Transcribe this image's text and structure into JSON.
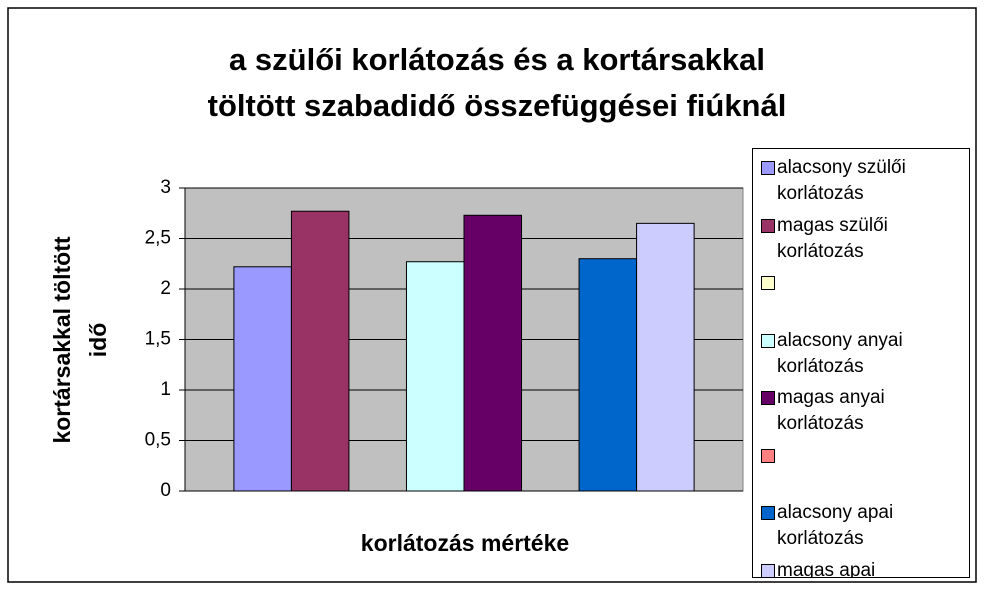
{
  "chart_data": {
    "type": "bar",
    "title": [
      "a szülői korlátozás és a kortársakkal",
      "töltött szabadidő összefüggései fiúknál"
    ],
    "y_axis_label": [
      "kortársakkal töltött",
      "idő"
    ],
    "x_axis_label": "korlátozás mértéke",
    "categories": [
      null
    ],
    "series": [
      {
        "name": "alacsony szülői korlátozás",
        "color": "#9999ff",
        "values": [
          2.22
        ]
      },
      {
        "name": "magas szülői korlátozás",
        "color": "#993366",
        "values": [
          2.77
        ]
      },
      {
        "name": null,
        "color": "#ffffcc",
        "values": [
          null
        ]
      },
      {
        "name": "alacsony anyai korlátozás",
        "color": "#ccffff",
        "values": [
          2.27
        ]
      },
      {
        "name": "magas anyai korlátozás",
        "color": "#660066",
        "values": [
          2.73
        ]
      },
      {
        "name": null,
        "color": "#ff8080",
        "values": [
          null
        ]
      },
      {
        "name": "alacsony apai korlátozás",
        "color": "#0066cc",
        "values": [
          2.3
        ]
      },
      {
        "name": "magas apai",
        "color": "#ccccff",
        "values": [
          2.65
        ]
      }
    ],
    "ylim": [
      0,
      3
    ],
    "yticks": [
      0,
      {
        "value": 0.5,
        "label": "0,5"
      },
      1,
      {
        "value": 1.5,
        "label": "1,5"
      },
      2,
      {
        "value": 2.5,
        "label": "2,5"
      },
      3
    ],
    "grid": true,
    "plot_background": "#c0c0c0",
    "legend": "right"
  }
}
